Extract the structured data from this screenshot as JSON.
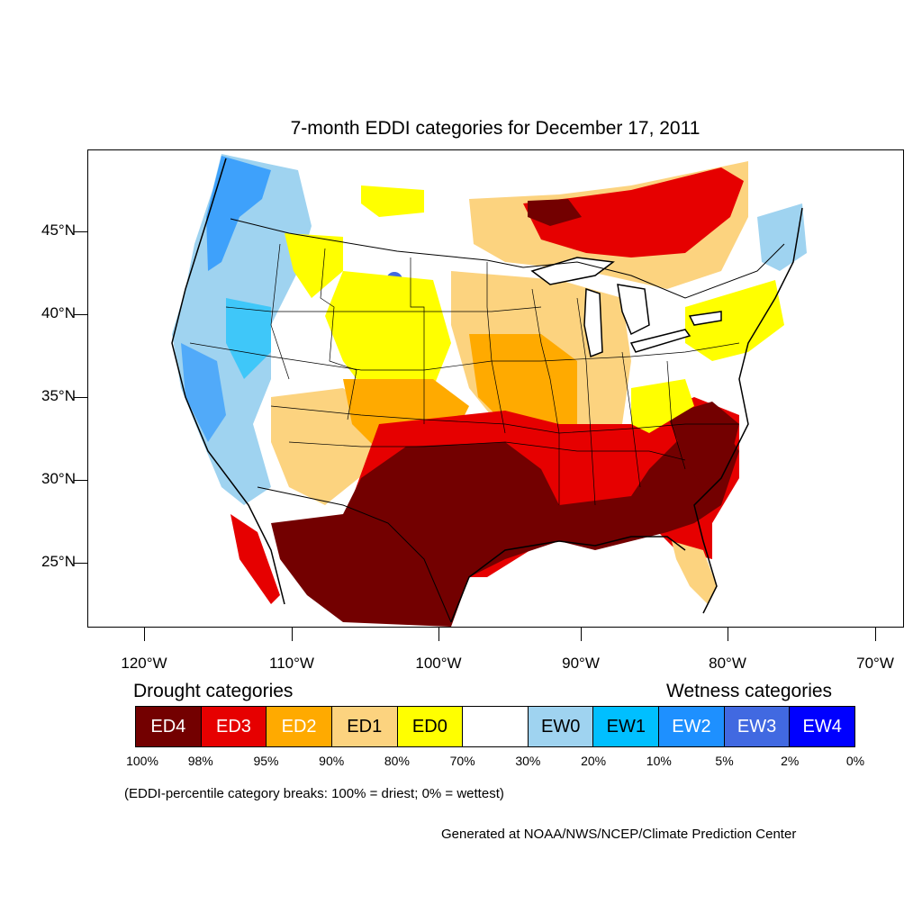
{
  "title": "7-month EDDI categories for December 17, 2011",
  "latitude_labels": [
    "45°N",
    "40°N",
    "35°N",
    "30°N",
    "25°N"
  ],
  "longitude_labels": [
    "120°W",
    "110°W",
    "100°W",
    "90°W",
    "80°W",
    "70°W"
  ],
  "legend": {
    "drought_heading": "Drought categories",
    "wetness_heading": "Wetness categories",
    "categories": [
      {
        "label": "ED4",
        "color": "#730000",
        "text_color": "#ffffff"
      },
      {
        "label": "ED3",
        "color": "#e60000",
        "text_color": "#ffffff"
      },
      {
        "label": "ED2",
        "color": "#ffaa00",
        "text_color": "#ffffff"
      },
      {
        "label": "ED1",
        "color": "#fcd37f",
        "text_color": "#000000"
      },
      {
        "label": "ED0",
        "color": "#ffff00",
        "text_color": "#000000"
      },
      {
        "label": "",
        "color": "#ffffff",
        "text_color": "#000000"
      },
      {
        "label": "EW0",
        "color": "#9fd3f0",
        "text_color": "#000000"
      },
      {
        "label": "EW1",
        "color": "#00bfff",
        "text_color": "#000000"
      },
      {
        "label": "EW2",
        "color": "#1e90ff",
        "text_color": "#ffffff"
      },
      {
        "label": "EW3",
        "color": "#4169e1",
        "text_color": "#ffffff"
      },
      {
        "label": "EW4",
        "color": "#0000ff",
        "text_color": "#ffffff"
      }
    ],
    "breaks": [
      "100%",
      "98%",
      "95%",
      "90%",
      "80%",
      "70%",
      "30%",
      "20%",
      "10%",
      "5%",
      "2%",
      "0%"
    ]
  },
  "note": "(EDDI-percentile category breaks: 100% = driest; 0% = wettest)",
  "credit": "Generated at NOAA/NWS/NCEP/Climate Prediction Center"
}
